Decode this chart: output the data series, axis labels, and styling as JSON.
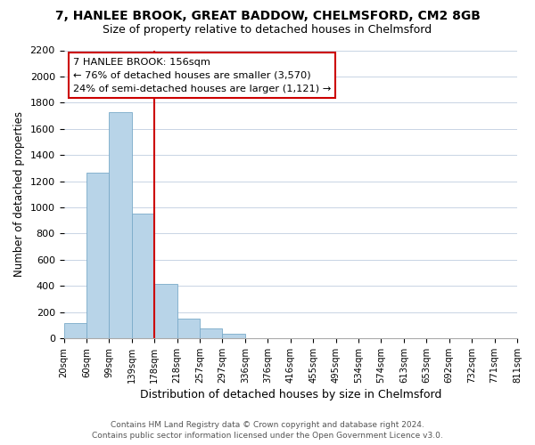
{
  "title": "7, HANLEE BROOK, GREAT BADDOW, CHELMSFORD, CM2 8GB",
  "subtitle": "Size of property relative to detached houses in Chelmsford",
  "xlabel": "Distribution of detached houses by size in Chelmsford",
  "ylabel": "Number of detached properties",
  "bin_labels": [
    "20sqm",
    "60sqm",
    "99sqm",
    "139sqm",
    "178sqm",
    "218sqm",
    "257sqm",
    "297sqm",
    "336sqm",
    "376sqm",
    "416sqm",
    "455sqm",
    "495sqm",
    "534sqm",
    "574sqm",
    "613sqm",
    "653sqm",
    "692sqm",
    "732sqm",
    "771sqm",
    "811sqm"
  ],
  "bar_values": [
    115,
    1265,
    1730,
    950,
    415,
    150,
    75,
    35,
    0,
    0,
    0,
    0,
    0,
    0,
    0,
    0,
    0,
    0,
    0,
    0
  ],
  "bar_color": "#b8d4e8",
  "bar_edge_color": "#7aaac8",
  "annotation_title": "7 HANLEE BROOK: 156sqm",
  "annotation_line1": "← 76% of detached houses are smaller (3,570)",
  "annotation_line2": "24% of semi-detached houses are larger (1,121) →",
  "annotation_box_color": "#ffffff",
  "annotation_box_edge": "#cc0000",
  "line_color": "#cc0000",
  "line_x_index": 3.5,
  "ylim": [
    0,
    2200
  ],
  "yticks": [
    0,
    200,
    400,
    600,
    800,
    1000,
    1200,
    1400,
    1600,
    1800,
    2000,
    2200
  ],
  "footer_line1": "Contains HM Land Registry data © Crown copyright and database right 2024.",
  "footer_line2": "Contains public sector information licensed under the Open Government Licence v3.0.",
  "background_color": "#ffffff",
  "grid_color": "#c8d4e4"
}
